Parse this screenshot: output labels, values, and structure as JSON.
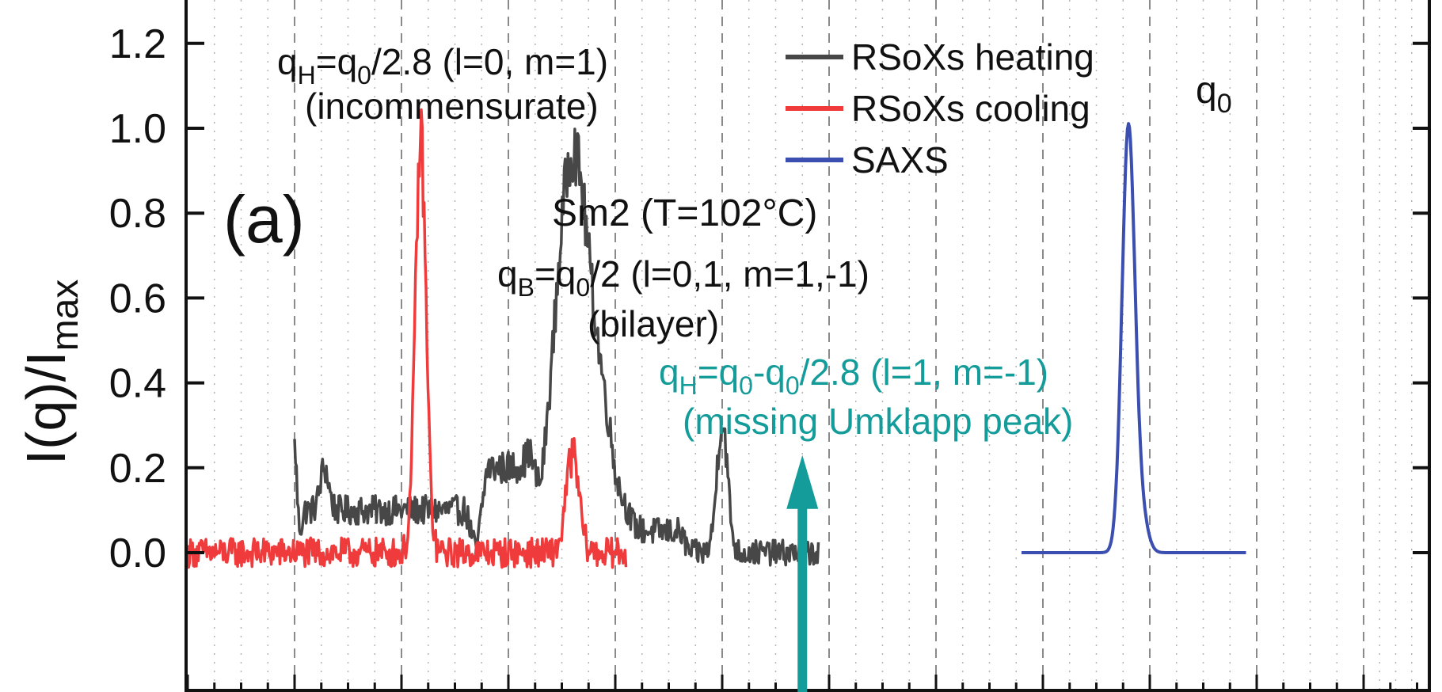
{
  "chart_data": {
    "type": "line",
    "ylabel": {
      "main": "I(q)/I",
      "sub": "max"
    },
    "ylim": [
      -0.09,
      1.29
    ],
    "xlim": [
      0,
      1.16
    ],
    "y_ticks": [
      "0.0",
      "0.2",
      "0.4",
      "0.6",
      "0.8",
      "1.0",
      "1.2"
    ],
    "y_tick_values": [
      0.0,
      0.2,
      0.4,
      0.6,
      0.8,
      1.0,
      1.2
    ],
    "x_dashed_gridlines": [
      0.1,
      0.2,
      0.3,
      0.4,
      0.5,
      0.6,
      0.7,
      0.8,
      0.9,
      1.0,
      1.1
    ],
    "x_dotted_gridlines_per_interval": 4,
    "grid": "vertical dashed major, dotted minor",
    "legend": {
      "placement": "top-center",
      "entries": [
        {
          "label": "RSoXs heating",
          "color": "#474747"
        },
        {
          "label": "RSoXs cooling",
          "color": "#ef3b3b"
        },
        {
          "label": "SAXS",
          "color": "#3a4fb0"
        }
      ]
    },
    "series": [
      {
        "name": "RSoXs heating",
        "color": "#474747",
        "x_range": [
          0.1,
          0.59
        ],
        "noise": 0.03,
        "peaks": [
          {
            "x": 0.36,
            "height": 0.94,
            "width": 0.016
          },
          {
            "x": 0.39,
            "height": 0.22,
            "width": 0.012
          },
          {
            "x": 0.5,
            "height": 0.31,
            "width": 0.005
          },
          {
            "x": 0.1,
            "height": 0.25,
            "width": 0.002
          },
          {
            "x": 0.128,
            "height": 0.1,
            "width": 0.004
          }
        ],
        "baseline_segments": [
          {
            "x": [
              0.1,
              0.27
            ],
            "y": 0.1
          },
          {
            "x": [
              0.27,
              0.33
            ],
            "y": 0.2
          },
          {
            "x": [
              0.4,
              0.47
            ],
            "y": 0.05
          }
        ]
      },
      {
        "name": "RSoXs cooling",
        "color": "#ef3b3b",
        "x_range": [
          0.0,
          0.41
        ],
        "noise": 0.035,
        "peaks": [
          {
            "x": 0.218,
            "height": 0.97,
            "width": 0.005
          },
          {
            "x": 0.36,
            "height": 0.23,
            "width": 0.006
          }
        ]
      },
      {
        "name": "SAXS",
        "color": "#3a4fb0",
        "x_range": [
          0.78,
          0.99
        ],
        "noise": 0.0,
        "peaks": [
          {
            "x": 0.88,
            "height": 1.0,
            "width": 0.006
          }
        ]
      }
    ],
    "panel_label": "(a)",
    "annotations": {
      "qH": {
        "q": "q",
        "q_sub": "H",
        "eq": "=q",
        "q0_sub": "0",
        "rest": "/2.8 (l=0, m=1)",
        "note": "(incommensurate)"
      },
      "qB": {
        "q": "q",
        "q_sub": "B",
        "eq": "=q",
        "q0_sub": "0",
        "rest": "/2 (l=0,1, m=1,-1)",
        "note": "(bilayer)"
      },
      "phase": "Sm2 (T=102°C)",
      "qH2": {
        "q": "q",
        "q_sub": "H",
        "eq": "=q",
        "q0_sub": "0",
        "mid": "-q",
        "q0b_sub": "0",
        "rest": "/2.8 (l=1, m=-1)",
        "note": "(missing Umklapp peak)"
      },
      "q0": {
        "q": "q",
        "sub": "0"
      }
    },
    "arrow": {
      "x": 0.575,
      "y_from": -0.09,
      "y_to": 0.23,
      "color": "#139c9a"
    }
  }
}
